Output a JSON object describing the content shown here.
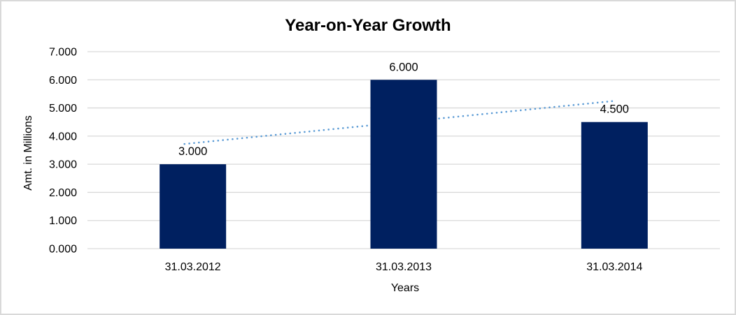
{
  "frame": {
    "background": "#ffffff",
    "border_color": "#d9d9d9"
  },
  "chart_data": {
    "type": "bar",
    "title": "Year-on-Year Growth",
    "xlabel": "Years",
    "ylabel": "Amt. in Millions",
    "categories": [
      "31.03.2012",
      "31.03.2013",
      "31.03.2014"
    ],
    "values": [
      3.0,
      6.0,
      4.5
    ],
    "data_labels": [
      "3.000",
      "6.000",
      "4.500"
    ],
    "ylim": [
      0,
      7
    ],
    "ytick_step": 1,
    "ytick_labels": [
      "0.000",
      "1.000",
      "2.000",
      "3.000",
      "4.000",
      "5.000",
      "6.000",
      "7.000"
    ],
    "grid": true,
    "legend": false,
    "bar_color": "#002060",
    "gridline_color": "#d9d9d9",
    "axis_line_color": "#d9d9d9",
    "text_color": "#000000",
    "trendline": {
      "type": "linear",
      "style": "dotted",
      "color": "#5b9bd5",
      "y_at_first_category": 3.75,
      "y_at_last_category": 5.25
    }
  }
}
